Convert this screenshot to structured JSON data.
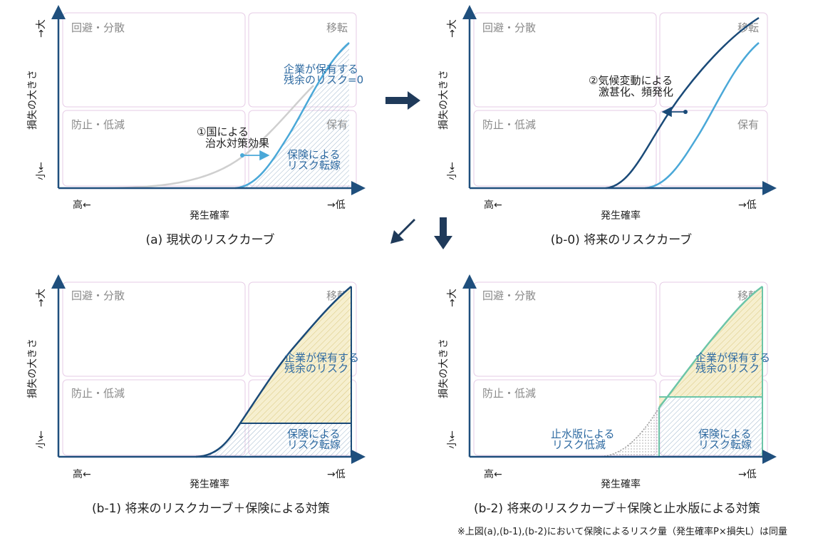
{
  "quadrant_labels": {
    "avoid": "回避・分散",
    "transfer": "移転",
    "prevent": "防止・低減",
    "retain": "保有"
  },
  "axis": {
    "y_label": "損失の大きさ",
    "y_top": "→大",
    "y_bottom": "小←",
    "x_label": "発生確率",
    "x_left": "高←",
    "x_right": "→低"
  },
  "panels": {
    "a": {
      "caption": "(a) 現状のリスクカーブ",
      "annot_residual": [
        "企業が保有する",
        "残余のリスク=0"
      ],
      "annot_flood": [
        "①国による",
        "治水対策効果"
      ],
      "annot_insurance": [
        "保険による",
        "リスク転嫁"
      ]
    },
    "b0": {
      "caption": "(b-0) 将来のリスクカーブ",
      "annot_climate": [
        "②気候変動による",
        "激甚化、頻発化"
      ]
    },
    "b1": {
      "caption": "(b-1) 将来のリスクカーブ＋保険による対策",
      "annot_residual": [
        "企業が保有する",
        "残余のリスク"
      ],
      "annot_insurance": [
        "保険による",
        "リスク転嫁"
      ]
    },
    "b2": {
      "caption": "(b-2) 将来のリスクカーブ＋保険と止水版による対策",
      "annot_residual": [
        "企業が保有する",
        "残余のリスク"
      ],
      "annot_insurance": [
        "保険による",
        "リスク転嫁"
      ],
      "annot_barrier": [
        "止水版による",
        "リスク低減"
      ]
    }
  },
  "footnote": "※上図(a),(b-1),(b-2)において保険によるリスク量（発生確率P×損失L）は同量",
  "colors": {
    "light_blue": "#4aa8d8",
    "dark_blue": "#1a4a78",
    "gray_curve": "#cfcfcf",
    "green_curve": "#6cc5a8",
    "arrow": "#1f3a5a",
    "residual_fill": "#f3ecc7"
  }
}
